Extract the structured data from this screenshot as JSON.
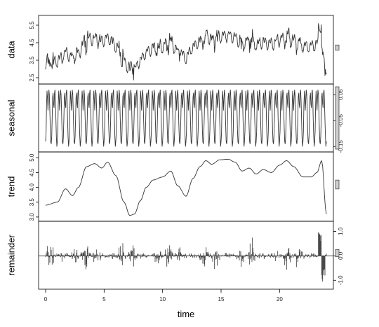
{
  "chart_data": {
    "type": "line",
    "xlabel": "time",
    "xlim": [
      -0.6,
      24.6
    ],
    "x_ticks": [
      "0",
      "5",
      "10",
      "15",
      "20"
    ],
    "x_tick_values": [
      0,
      5,
      10,
      15,
      20
    ],
    "panels": [
      {
        "name": "data",
        "ylabel": "data",
        "axis_side": "left",
        "ylim": [
          2.3,
          5.9
        ],
        "y_ticks": [
          "2.5",
          "3.5",
          "4.5",
          "5.5"
        ],
        "y_tick_values": [
          2.5,
          3.5,
          4.5,
          5.5
        ]
      },
      {
        "name": "seasonal",
        "ylabel": "seasonal",
        "axis_side": "right",
        "ylim": [
          -0.16,
          0.08
        ],
        "y_ticks": [
          "0.05",
          "-0.05",
          "-0.15"
        ],
        "y_tick_values": [
          0.05,
          -0.05,
          -0.15
        ],
        "period": 0.5,
        "pattern": [
          -0.13,
          -0.09,
          0.02,
          0.07,
          0.03,
          -0.02,
          0.05,
          0.075,
          0.04,
          -0.04,
          -0.11,
          -0.15
        ]
      },
      {
        "name": "trend",
        "ylabel": "trend",
        "axis_side": "left",
        "ylim": [
          2.95,
          5.1
        ],
        "y_ticks": [
          "3.0",
          "3.5",
          "4.0",
          "4.5",
          "5.0"
        ],
        "y_tick_values": [
          3.0,
          3.5,
          4.0,
          4.5,
          5.0
        ],
        "x": [
          0,
          1,
          1.7,
          2.3,
          2.8,
          3.5,
          4.2,
          4.8,
          5.3,
          6.0,
          6.7,
          7.2,
          7.6,
          8.1,
          8.6,
          9.2,
          10.0,
          10.7,
          11.3,
          12.0,
          12.6,
          13.2,
          13.7,
          14.2,
          14.9,
          15.6,
          16.2,
          16.8,
          17.4,
          18.0,
          18.6,
          19.3,
          20.0,
          20.6,
          21.2,
          22.0,
          22.7,
          23.2,
          23.6,
          24.0
        ],
        "values": [
          3.4,
          3.5,
          3.95,
          3.72,
          4.0,
          4.7,
          4.8,
          4.65,
          4.85,
          4.4,
          3.5,
          3.05,
          3.1,
          3.55,
          4.0,
          4.25,
          4.35,
          4.55,
          4.05,
          3.7,
          4.3,
          4.7,
          4.9,
          4.78,
          4.93,
          4.95,
          4.85,
          4.55,
          4.65,
          4.45,
          4.6,
          4.5,
          4.75,
          4.9,
          4.7,
          4.35,
          4.35,
          4.5,
          4.9,
          3.1
        ]
      },
      {
        "name": "remainder",
        "ylabel": "remainder",
        "axis_side": "right",
        "ylim": [
          -1.25,
          1.3
        ],
        "y_ticks": [
          "1.0",
          "0.0",
          "-1.0"
        ],
        "y_tick_values": [
          1.0,
          0.0,
          -1.0
        ]
      }
    ]
  }
}
